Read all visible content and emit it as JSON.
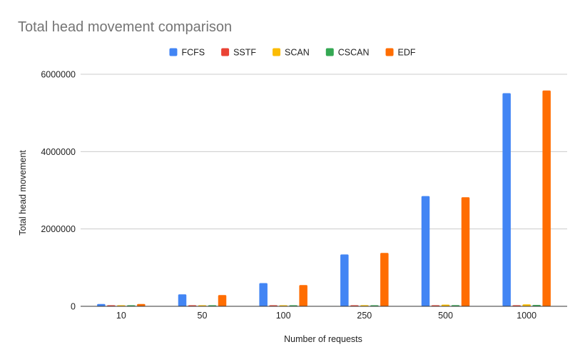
{
  "chart_data": {
    "type": "bar",
    "title": "Total head movement comparison",
    "xlabel": "Number of requests",
    "ylabel": "Total head movement",
    "categories": [
      "10",
      "50",
      "100",
      "250",
      "500",
      "1000"
    ],
    "ylim": [
      0,
      6000000
    ],
    "yticks": [
      0,
      2000000,
      4000000,
      6000000
    ],
    "grid": true,
    "legend_position": "top",
    "series": [
      {
        "name": "FCFS",
        "color": "#4285F4",
        "values": [
          60000,
          310000,
          600000,
          1340000,
          2850000,
          5510000
        ]
      },
      {
        "name": "SSTF",
        "color": "#EA4335",
        "values": [
          8000,
          12000,
          15000,
          18000,
          20000,
          25000
        ]
      },
      {
        "name": "SCAN",
        "color": "#FBBC04",
        "values": [
          10000,
          20000,
          25000,
          30000,
          45000,
          50000
        ]
      },
      {
        "name": "CSCAN",
        "color": "#34A853",
        "values": [
          10000,
          15000,
          20000,
          25000,
          30000,
          35000
        ]
      },
      {
        "name": "EDF",
        "color": "#FF6D01",
        "values": [
          60000,
          290000,
          550000,
          1380000,
          2820000,
          5580000
        ]
      }
    ]
  }
}
